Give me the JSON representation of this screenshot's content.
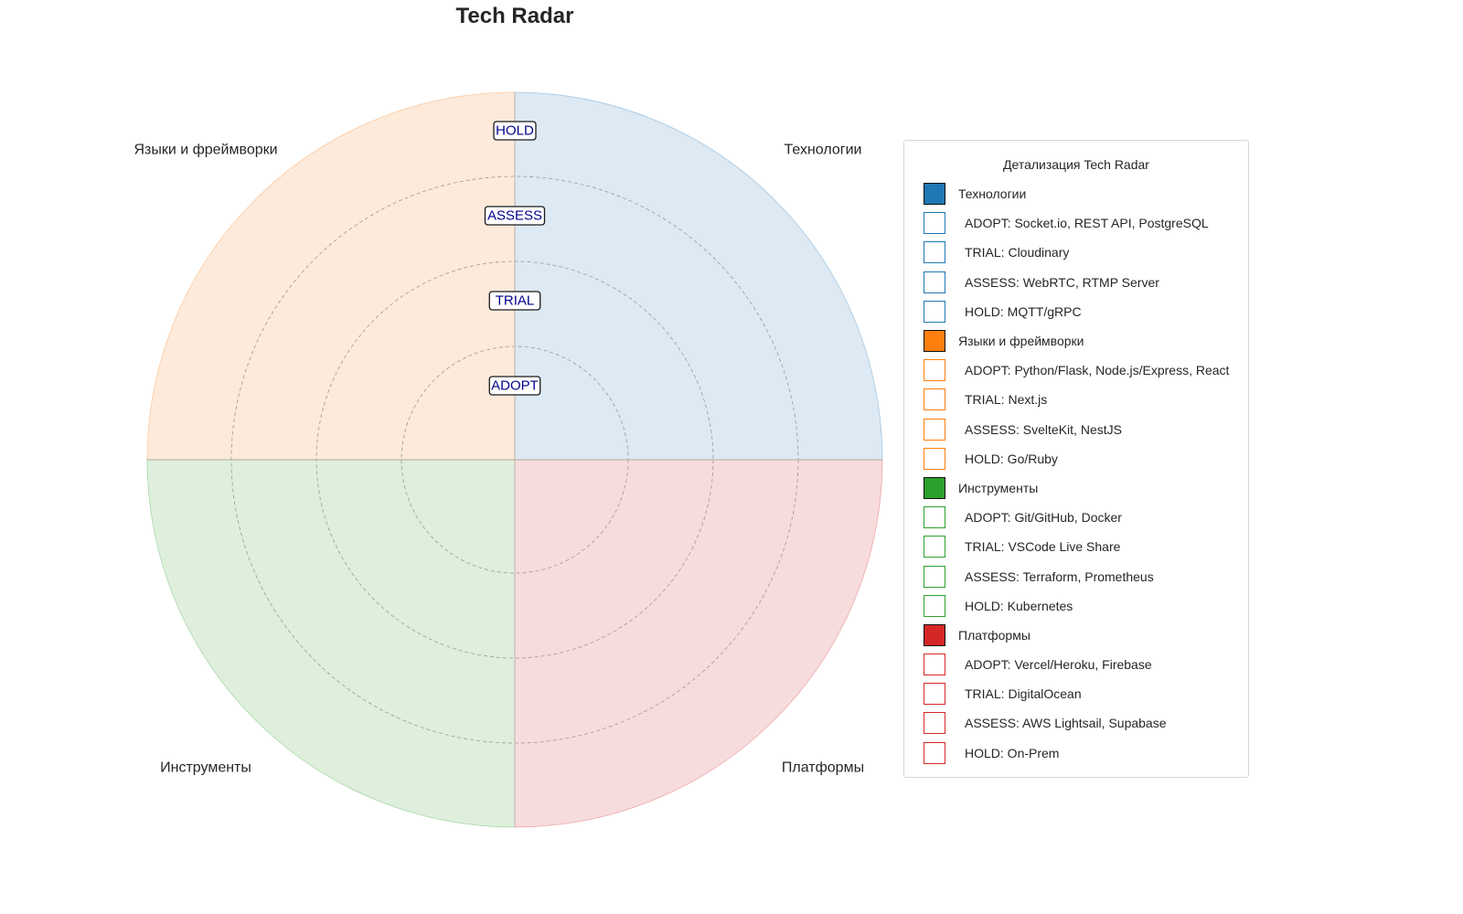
{
  "title": "Tech Radar",
  "rings": [
    "ADOPT",
    "TRIAL",
    "ASSESS",
    "HOLD"
  ],
  "quadrants": [
    {
      "name": "Технологии",
      "color": "#1f77b4",
      "fill": "#dde9f3",
      "position": "top-right"
    },
    {
      "name": "Языки и фреймворки",
      "color": "#ff7f0e",
      "fill": "#fdeadb",
      "position": "top-left"
    },
    {
      "name": "Инструменты",
      "color": "#2ca02c",
      "fill": "#deefdc",
      "position": "bottom-left"
    },
    {
      "name": "Платформы",
      "color": "#d62728",
      "fill": "#f7dcdd",
      "position": "bottom-right"
    }
  ],
  "legend": {
    "title": "Детализация Tech Radar",
    "groups": [
      {
        "name": "Технологии",
        "color": "#1f77b4",
        "items": [
          "ADOPT: Socket.io, REST API, PostgreSQL",
          "TRIAL: Cloudinary",
          "ASSESS: WebRTC, RTMP Server",
          "HOLD: MQTT/gRPC"
        ]
      },
      {
        "name": "Языки и фреймворки",
        "color": "#ff7f0e",
        "items": [
          "ADOPT: Python/Flask, Node.js/Express, React",
          "TRIAL: Next.js",
          "ASSESS: SvelteKit, NestJS",
          "HOLD: Go/Ruby"
        ]
      },
      {
        "name": "Инструменты",
        "color": "#2ca02c",
        "items": [
          "ADOPT: Git/GitHub, Docker",
          "TRIAL: VSCode Live Share",
          "ASSESS: Terraform, Prometheus",
          "HOLD: Kubernetes"
        ]
      },
      {
        "name": "Платформы",
        "color": "#d62728",
        "items": [
          "ADOPT: Vercel/Heroku, Firebase",
          "TRIAL: DigitalOcean",
          "ASSESS: AWS Lightsail, Supabase",
          "HOLD: On-Prem"
        ]
      }
    ]
  }
}
